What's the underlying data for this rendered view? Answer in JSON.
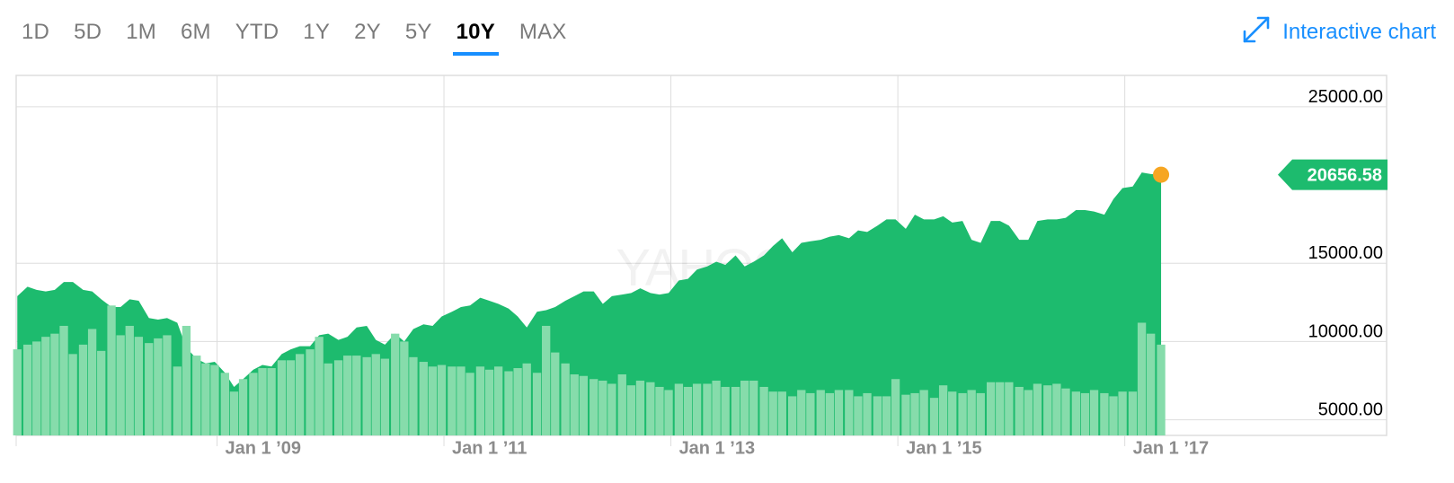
{
  "range_tabs": [
    {
      "label": "1D",
      "active": false
    },
    {
      "label": "5D",
      "active": false
    },
    {
      "label": "1M",
      "active": false
    },
    {
      "label": "6M",
      "active": false
    },
    {
      "label": "YTD",
      "active": false
    },
    {
      "label": "1Y",
      "active": false
    },
    {
      "label": "2Y",
      "active": false
    },
    {
      "label": "5Y",
      "active": false
    },
    {
      "label": "10Y",
      "active": true
    },
    {
      "label": "MAX",
      "active": false
    }
  ],
  "interactive_chart": {
    "label": "Interactive chart",
    "icon": "expand-arrows-icon"
  },
  "watermark": "YAHOO!",
  "colors": {
    "area": "#1dbb6e",
    "volume": "#86dcab",
    "marker": "#f6a623",
    "accent": "#188fff",
    "grid": "#dddddd"
  },
  "chart_data": {
    "type": "area",
    "x_tick_labels": [
      "Jan 1 ’09",
      "Jan 1 ’11",
      "Jan 1 ’13",
      "Jan 1 ’15",
      "Jan 1 ’17"
    ],
    "x_ticks": [
      2009,
      2011,
      2013,
      2015,
      2017
    ],
    "y_tick_labels": [
      "25000.00",
      "15000.00",
      "10000.00",
      "5000.00"
    ],
    "y_ticks": [
      25000,
      15000,
      10000,
      5000
    ],
    "xlim": [
      2007.23,
      2018.27
    ],
    "ylim": [
      4000,
      27000
    ],
    "last_value_label": "20656.58",
    "last_value": 20656.58,
    "series": [
      {
        "values": [
          [
            2007.24,
            12900
          ],
          [
            2007.33,
            13500
          ],
          [
            2007.41,
            13300
          ],
          [
            2007.49,
            13200
          ],
          [
            2007.57,
            13300
          ],
          [
            2007.65,
            13800
          ],
          [
            2007.73,
            13800
          ],
          [
            2007.82,
            13300
          ],
          [
            2007.9,
            13200
          ],
          [
            2007.98,
            12700
          ],
          [
            2008.07,
            12200
          ],
          [
            2008.15,
            12200
          ],
          [
            2008.23,
            12700
          ],
          [
            2008.31,
            12600
          ],
          [
            2008.4,
            11500
          ],
          [
            2008.48,
            11400
          ],
          [
            2008.56,
            11500
          ],
          [
            2008.65,
            11200
          ],
          [
            2008.73,
            9600
          ],
          [
            2008.82,
            8900
          ],
          [
            2008.9,
            8600
          ],
          [
            2008.98,
            8700
          ],
          [
            2009.07,
            8000
          ],
          [
            2009.15,
            7100
          ],
          [
            2009.23,
            7600
          ],
          [
            2009.32,
            8200
          ],
          [
            2009.4,
            8500
          ],
          [
            2009.48,
            8400
          ],
          [
            2009.57,
            9200
          ],
          [
            2009.65,
            9500
          ],
          [
            2009.73,
            9700
          ],
          [
            2009.82,
            9700
          ],
          [
            2009.9,
            10400
          ],
          [
            2009.98,
            10500
          ],
          [
            2010.07,
            10100
          ],
          [
            2010.15,
            10300
          ],
          [
            2010.23,
            10900
          ],
          [
            2010.32,
            11000
          ],
          [
            2010.4,
            10100
          ],
          [
            2010.48,
            9800
          ],
          [
            2010.57,
            10500
          ],
          [
            2010.65,
            10000
          ],
          [
            2010.73,
            10800
          ],
          [
            2010.82,
            11100
          ],
          [
            2010.9,
            11000
          ],
          [
            2010.98,
            11600
          ],
          [
            2011.07,
            11900
          ],
          [
            2011.15,
            12200
          ],
          [
            2011.23,
            12300
          ],
          [
            2011.32,
            12800
          ],
          [
            2011.4,
            12600
          ],
          [
            2011.48,
            12400
          ],
          [
            2011.57,
            12100
          ],
          [
            2011.65,
            11600
          ],
          [
            2011.73,
            10900
          ],
          [
            2011.82,
            11900
          ],
          [
            2011.9,
            12000
          ],
          [
            2011.98,
            12200
          ],
          [
            2012.07,
            12600
          ],
          [
            2012.15,
            12900
          ],
          [
            2012.23,
            13200
          ],
          [
            2012.32,
            13200
          ],
          [
            2012.4,
            12400
          ],
          [
            2012.48,
            12900
          ],
          [
            2012.57,
            13000
          ],
          [
            2012.65,
            13100
          ],
          [
            2012.73,
            13400
          ],
          [
            2012.82,
            13100
          ],
          [
            2012.9,
            13000
          ],
          [
            2012.98,
            13100
          ],
          [
            2013.07,
            13900
          ],
          [
            2013.15,
            14000
          ],
          [
            2013.23,
            14600
          ],
          [
            2013.32,
            14800
          ],
          [
            2013.4,
            15100
          ],
          [
            2013.48,
            14900
          ],
          [
            2013.57,
            15500
          ],
          [
            2013.65,
            14800
          ],
          [
            2013.73,
            15100
          ],
          [
            2013.82,
            15500
          ],
          [
            2013.9,
            16100
          ],
          [
            2013.98,
            16600
          ],
          [
            2014.07,
            15700
          ],
          [
            2014.15,
            16300
          ],
          [
            2014.23,
            16400
          ],
          [
            2014.32,
            16500
          ],
          [
            2014.4,
            16700
          ],
          [
            2014.48,
            16800
          ],
          [
            2014.57,
            16600
          ],
          [
            2014.65,
            17100
          ],
          [
            2014.73,
            17000
          ],
          [
            2014.82,
            17400
          ],
          [
            2014.9,
            17800
          ],
          [
            2014.98,
            17800
          ],
          [
            2015.07,
            17200
          ],
          [
            2015.15,
            18100
          ],
          [
            2015.23,
            17800
          ],
          [
            2015.32,
            17800
          ],
          [
            2015.4,
            18000
          ],
          [
            2015.48,
            17600
          ],
          [
            2015.57,
            17700
          ],
          [
            2015.65,
            16500
          ],
          [
            2015.73,
            16300
          ],
          [
            2015.82,
            17700
          ],
          [
            2015.9,
            17700
          ],
          [
            2015.98,
            17400
          ],
          [
            2016.07,
            16500
          ],
          [
            2016.15,
            16500
          ],
          [
            2016.23,
            17700
          ],
          [
            2016.32,
            17800
          ],
          [
            2016.4,
            17800
          ],
          [
            2016.48,
            17900
          ],
          [
            2016.57,
            18400
          ],
          [
            2016.65,
            18400
          ],
          [
            2016.73,
            18300
          ],
          [
            2016.82,
            18100
          ],
          [
            2016.9,
            19100
          ],
          [
            2016.98,
            19800
          ],
          [
            2017.07,
            19900
          ],
          [
            2017.15,
            20800
          ],
          [
            2017.23,
            20700
          ],
          [
            2017.32,
            20656.58
          ]
        ]
      }
    ],
    "volume_bars": [
      [
        2007.24,
        9500
      ],
      [
        2007.33,
        9800
      ],
      [
        2007.41,
        10000
      ],
      [
        2007.49,
        10300
      ],
      [
        2007.57,
        10500
      ],
      [
        2007.65,
        11000
      ],
      [
        2007.73,
        9200
      ],
      [
        2007.82,
        9800
      ],
      [
        2007.9,
        10800
      ],
      [
        2007.98,
        9400
      ],
      [
        2008.07,
        12300
      ],
      [
        2008.15,
        10400
      ],
      [
        2008.23,
        11000
      ],
      [
        2008.31,
        10300
      ],
      [
        2008.4,
        9900
      ],
      [
        2008.48,
        10200
      ],
      [
        2008.56,
        10400
      ],
      [
        2008.65,
        8400
      ],
      [
        2008.73,
        11000
      ],
      [
        2008.82,
        9100
      ],
      [
        2008.9,
        8600
      ],
      [
        2008.98,
        8500
      ],
      [
        2009.07,
        8000
      ],
      [
        2009.15,
        6800
      ],
      [
        2009.23,
        7600
      ],
      [
        2009.32,
        8000
      ],
      [
        2009.4,
        8300
      ],
      [
        2009.48,
        8300
      ],
      [
        2009.57,
        8800
      ],
      [
        2009.65,
        8800
      ],
      [
        2009.73,
        9200
      ],
      [
        2009.82,
        9500
      ],
      [
        2009.9,
        10300
      ],
      [
        2009.98,
        8600
      ],
      [
        2010.07,
        8800
      ],
      [
        2010.15,
        9100
      ],
      [
        2010.23,
        9100
      ],
      [
        2010.32,
        9000
      ],
      [
        2010.4,
        9200
      ],
      [
        2010.48,
        8900
      ],
      [
        2010.57,
        10500
      ],
      [
        2010.65,
        10000
      ],
      [
        2010.73,
        9000
      ],
      [
        2010.82,
        8700
      ],
      [
        2010.9,
        8400
      ],
      [
        2010.98,
        8500
      ],
      [
        2011.07,
        8400
      ],
      [
        2011.15,
        8400
      ],
      [
        2011.23,
        8000
      ],
      [
        2011.32,
        8400
      ],
      [
        2011.4,
        8200
      ],
      [
        2011.48,
        8400
      ],
      [
        2011.57,
        8100
      ],
      [
        2011.65,
        8300
      ],
      [
        2011.73,
        8600
      ],
      [
        2011.82,
        8000
      ],
      [
        2011.9,
        11000
      ],
      [
        2011.98,
        9300
      ],
      [
        2012.07,
        8600
      ],
      [
        2012.15,
        7900
      ],
      [
        2012.23,
        7800
      ],
      [
        2012.32,
        7600
      ],
      [
        2012.4,
        7500
      ],
      [
        2012.48,
        7300
      ],
      [
        2012.57,
        7900
      ],
      [
        2012.65,
        7200
      ],
      [
        2012.73,
        7500
      ],
      [
        2012.82,
        7400
      ],
      [
        2012.9,
        7100
      ],
      [
        2012.98,
        6900
      ],
      [
        2013.07,
        7300
      ],
      [
        2013.15,
        7100
      ],
      [
        2013.23,
        7300
      ],
      [
        2013.32,
        7300
      ],
      [
        2013.4,
        7500
      ],
      [
        2013.48,
        7100
      ],
      [
        2013.57,
        7100
      ],
      [
        2013.65,
        7500
      ],
      [
        2013.73,
        7500
      ],
      [
        2013.82,
        7100
      ],
      [
        2013.9,
        6800
      ],
      [
        2013.98,
        6800
      ],
      [
        2014.07,
        6500
      ],
      [
        2014.15,
        6900
      ],
      [
        2014.23,
        6700
      ],
      [
        2014.32,
        6900
      ],
      [
        2014.4,
        6700
      ],
      [
        2014.48,
        6900
      ],
      [
        2014.57,
        6900
      ],
      [
        2014.65,
        6500
      ],
      [
        2014.73,
        6700
      ],
      [
        2014.82,
        6500
      ],
      [
        2014.9,
        6500
      ],
      [
        2014.98,
        7600
      ],
      [
        2015.07,
        6600
      ],
      [
        2015.15,
        6700
      ],
      [
        2015.23,
        6900
      ],
      [
        2015.32,
        6400
      ],
      [
        2015.4,
        7200
      ],
      [
        2015.48,
        6800
      ],
      [
        2015.57,
        6700
      ],
      [
        2015.65,
        6900
      ],
      [
        2015.73,
        6700
      ],
      [
        2015.82,
        7400
      ],
      [
        2015.9,
        7400
      ],
      [
        2015.98,
        7400
      ],
      [
        2016.07,
        7100
      ],
      [
        2016.15,
        6900
      ],
      [
        2016.23,
        7300
      ],
      [
        2016.32,
        7200
      ],
      [
        2016.4,
        7300
      ],
      [
        2016.48,
        7000
      ],
      [
        2016.57,
        6800
      ],
      [
        2016.65,
        6700
      ],
      [
        2016.73,
        6900
      ],
      [
        2016.82,
        6700
      ],
      [
        2016.9,
        6500
      ],
      [
        2016.98,
        6800
      ],
      [
        2017.07,
        6800
      ],
      [
        2017.15,
        11200
      ],
      [
        2017.23,
        10500
      ],
      [
        2017.32,
        9800
      ]
    ]
  }
}
